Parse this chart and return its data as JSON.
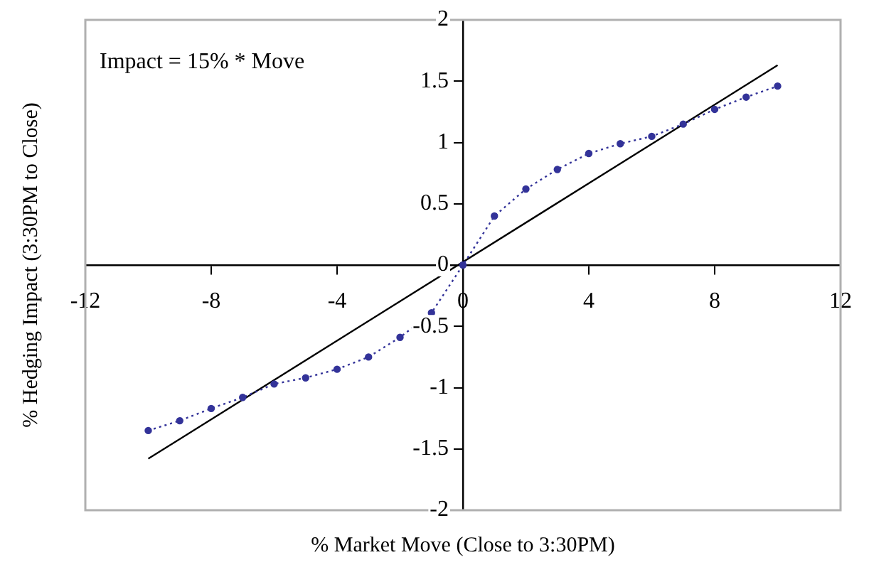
{
  "chart_data": {
    "type": "line",
    "xlabel": "% Market Move (Close to 3:30PM)",
    "ylabel": "% Hedging Impact (3:30PM to Close)",
    "annotations": [
      "Impact = 15% * Move"
    ],
    "xlim": [
      -12,
      12
    ],
    "xticks": [
      -12,
      -8,
      -4,
      0,
      4,
      8,
      12
    ],
    "ylim": [
      -2,
      2
    ],
    "yticks": [
      -2,
      -1.5,
      -1,
      -0.5,
      0,
      0.5,
      1,
      1.5,
      2
    ],
    "grid": false,
    "legend": false,
    "series": [
      {
        "color": "#333399",
        "marker": "circle",
        "line_style": "dotted",
        "x": [
          -10,
          -9,
          -8,
          -7,
          -6,
          -5,
          -4,
          -3,
          -2,
          -1,
          0,
          1,
          2,
          3,
          4,
          5,
          6,
          7,
          8,
          9,
          10
        ],
        "values": [
          -1.35,
          -1.27,
          -1.17,
          -1.08,
          -0.97,
          -0.92,
          -0.85,
          -0.75,
          -0.59,
          -0.39,
          0,
          0.4,
          0.62,
          0.78,
          0.91,
          0.99,
          1.05,
          1.15,
          1.27,
          1.37,
          1.46
        ]
      },
      {
        "color": "#000000",
        "marker": "none",
        "line_style": "solid",
        "x": [
          -10,
          10
        ],
        "values": [
          -1.58,
          1.63
        ]
      }
    ]
  }
}
